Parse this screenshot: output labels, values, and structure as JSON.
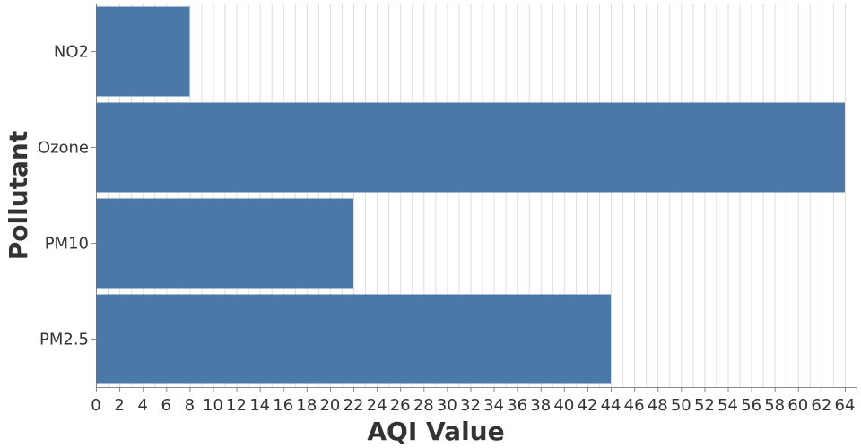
{
  "chart_data": {
    "type": "bar",
    "orientation": "horizontal",
    "categories": [
      "NO2",
      "Ozone",
      "PM10",
      "PM2.5"
    ],
    "values": [
      8,
      64,
      22,
      44
    ],
    "xlabel": "AQI Value",
    "ylabel": "Pollutant",
    "xlim": [
      0,
      65
    ],
    "x_tick_step": 2,
    "grid": true,
    "bar_color": "#4c78a8"
  }
}
